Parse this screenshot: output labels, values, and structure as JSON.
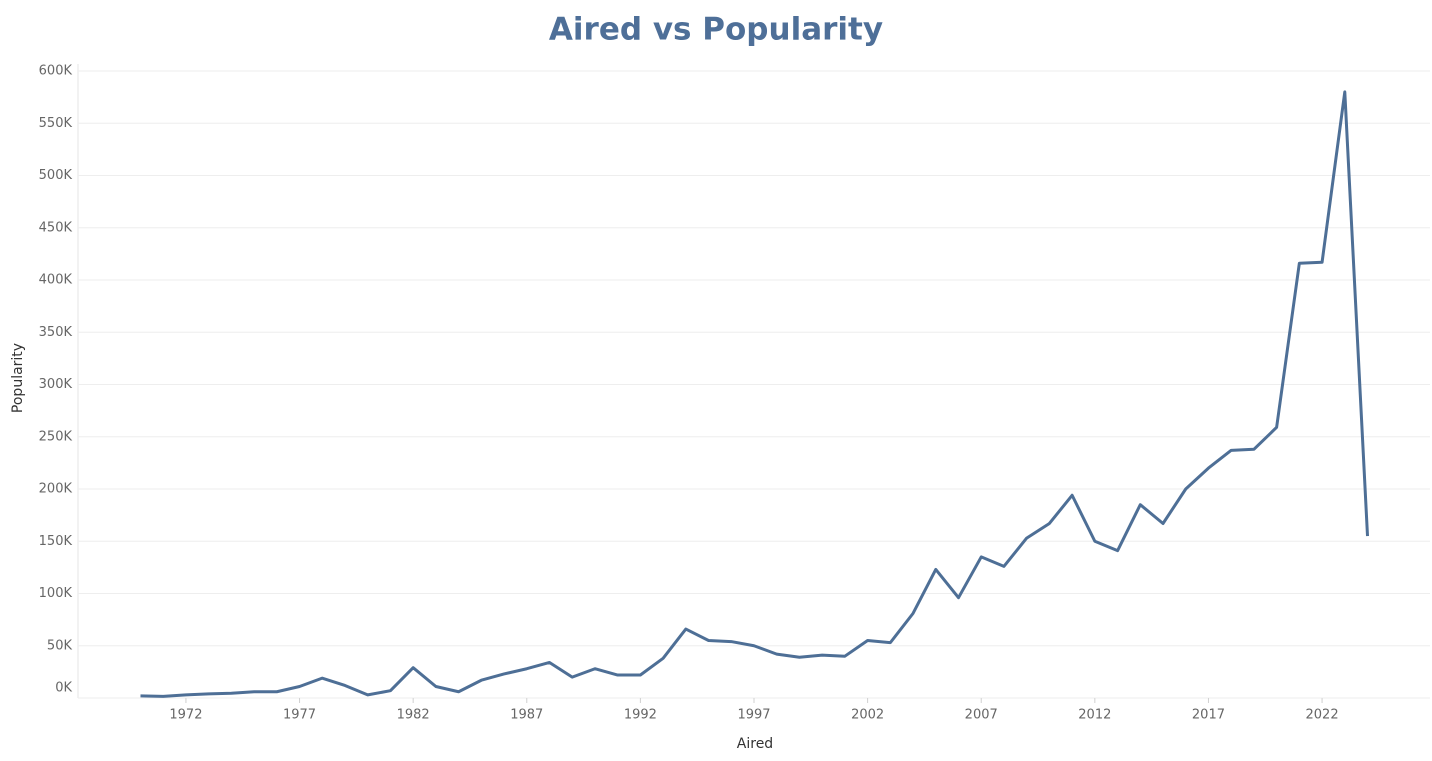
{
  "chart_data": {
    "type": "line",
    "title": "Aired vs Popularity",
    "x_label": "Aired",
    "y_label": "Popularity",
    "x": [
      1970,
      1971,
      1972,
      1973,
      1974,
      1975,
      1976,
      1977,
      1978,
      1979,
      1980,
      1981,
      1982,
      1983,
      1984,
      1985,
      1986,
      1987,
      1988,
      1989,
      1990,
      1991,
      1992,
      1993,
      1994,
      1995,
      1996,
      1997,
      1998,
      1999,
      2000,
      2001,
      2002,
      2003,
      2004,
      2005,
      2006,
      2007,
      2008,
      2009,
      2010,
      2011,
      2012,
      2013,
      2014,
      2015,
      2016,
      2017,
      2018,
      2019,
      2020,
      2021,
      2022,
      2023,
      2024
    ],
    "series": [
      {
        "name": "Popularity",
        "color": "#4e6f96",
        "values": [
          2000,
          1500,
          3000,
          4000,
          4500,
          6000,
          6000,
          11000,
          19000,
          12000,
          3000,
          7000,
          29000,
          11000,
          6000,
          17000,
          23000,
          28000,
          34000,
          20000,
          28000,
          22000,
          22000,
          38000,
          66000,
          55000,
          54000,
          50000,
          42000,
          39000,
          41000,
          40000,
          55000,
          53000,
          81000,
          123000,
          96000,
          135000,
          126000,
          153000,
          167000,
          194000,
          150000,
          141000,
          185000,
          167000,
          200000,
          220000,
          237000,
          238000,
          259000,
          416000,
          417000,
          580000,
          155000
        ]
      }
    ],
    "xlim": [
      1967.25,
      2026.75
    ],
    "xticks": [
      1972,
      1977,
      1982,
      1987,
      1992,
      1997,
      2002,
      2007,
      2012,
      2017,
      2022
    ],
    "ylim": [
      0,
      600000
    ],
    "yticks": [
      {
        "value": 0,
        "label": "0K"
      },
      {
        "value": 50000,
        "label": "50K"
      },
      {
        "value": 100000,
        "label": "100K"
      },
      {
        "value": 150000,
        "label": "150K"
      },
      {
        "value": 200000,
        "label": "200K"
      },
      {
        "value": 250000,
        "label": "250K"
      },
      {
        "value": 300000,
        "label": "300K"
      },
      {
        "value": 350000,
        "label": "350K"
      },
      {
        "value": 400000,
        "label": "400K"
      },
      {
        "value": 450000,
        "label": "450K"
      },
      {
        "value": 500000,
        "label": "500K"
      },
      {
        "value": 550000,
        "label": "550K"
      },
      {
        "value": 600000,
        "label": "600K"
      }
    ],
    "grid": true
  }
}
